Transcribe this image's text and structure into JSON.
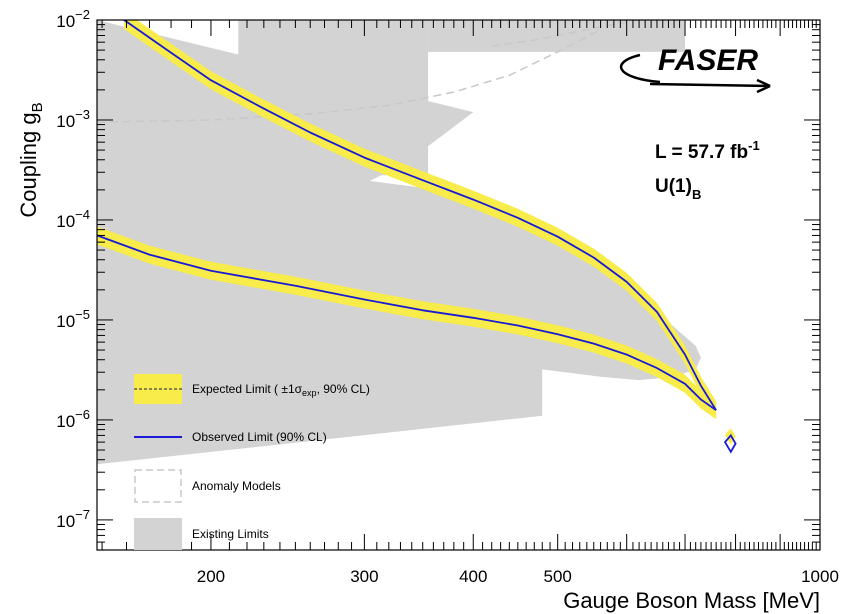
{
  "chart_data": {
    "type": "line",
    "xlabel": "Gauge Boson Mass [MeV]",
    "ylabel": "Coupling g",
    "ylabel_sub": "B",
    "x_scale": "log",
    "y_scale": "log",
    "xlim": [
      148,
      1000
    ],
    "ylim": [
      5e-08,
      0.01
    ],
    "x_ticks": [
      {
        "value": 200,
        "label": "200"
      },
      {
        "value": 300,
        "label": "300"
      },
      {
        "value": 400,
        "label": "400"
      },
      {
        "value": 500,
        "label": "500"
      },
      {
        "value": 1000,
        "label": "1000"
      }
    ],
    "y_ticks": [
      {
        "value": 1e-07,
        "base": "10",
        "exp": "−7"
      },
      {
        "value": 1e-06,
        "base": "10",
        "exp": "−6"
      },
      {
        "value": 1e-05,
        "base": "10",
        "exp": "−5"
      },
      {
        "value": 0.0001,
        "base": "10",
        "exp": "−4"
      },
      {
        "value": 0.001,
        "base": "10",
        "exp": "−3"
      },
      {
        "value": 0.01,
        "base": "10",
        "exp": "−2"
      }
    ],
    "grid": false,
    "annotations": {
      "luminosity": {
        "main": "L = 57.7 fb",
        "sup": "-1"
      },
      "model": {
        "main": "U(1)",
        "sub": "B"
      },
      "logo": "FASER"
    },
    "legend": {
      "placement": "bottom-left",
      "entries": [
        {
          "label": "Expected Limit ( ±1σ",
          "sub": "exp",
          "tail": ", 90% CL)",
          "style": "yellow-band-dashed"
        },
        {
          "label": "Observed Limit (90% CL)",
          "style": "blue-line"
        },
        {
          "label": "Anomaly Models",
          "style": "dashed-box"
        },
        {
          "label": "Existing Limits",
          "style": "grey-fill"
        }
      ]
    },
    "colors": {
      "observed": "#1a1ad6",
      "expected_band": "#f7ec4a",
      "expected_line": "#444444",
      "existing": "#d3d3d3",
      "anomaly": "#c8c8c8"
    },
    "series": [
      {
        "name": "Observed Limit (90% CL)",
        "role": "upper",
        "x": [
          159,
          180,
          200,
          230,
          260,
          300,
          350,
          400,
          450,
          500,
          550,
          600,
          650,
          700,
          730,
          760
        ],
        "y": [
          0.01,
          0.0047,
          0.0025,
          0.0013,
          0.00075,
          0.00042,
          0.00025,
          0.00016,
          0.000105,
          6.8e-05,
          4.2e-05,
          2.4e-05,
          1.2e-05,
          4.5e-06,
          2.2e-06,
          1.25e-06
        ]
      },
      {
        "name": "Observed Limit (90% CL)",
        "role": "lower",
        "x": [
          148,
          170,
          200,
          250,
          300,
          350,
          400,
          450,
          500,
          550,
          600,
          650,
          700,
          730,
          760
        ],
        "y": [
          7e-05,
          4.5e-05,
          3.1e-05,
          2.2e-05,
          1.6e-05,
          1.25e-05,
          1.05e-05,
          8.8e-06,
          7.2e-06,
          5.8e-06,
          4.5e-06,
          3.3e-06,
          2.3e-06,
          1.6e-06,
          1.25e-06
        ]
      },
      {
        "name": "Observed Limit (90% CL)",
        "role": "island",
        "x": [
          778,
          790,
          800,
          790,
          778
        ],
        "y": [
          6e-07,
          4.8e-07,
          5.8e-07,
          7e-07,
          6e-07
        ]
      }
    ],
    "expected_band_width_decades": 0.09,
    "existing_limits_regions": [
      {
        "x": [
          148,
          148,
          170,
          200,
          230,
          260,
          300,
          330,
          360,
          400
        ],
        "y": [
          0.01,
          5.5e-05,
          6.2e-05,
          7.5e-05,
          0.0001,
          0.00015,
          0.00023,
          0.00035,
          0.0006,
          0.0012
        ]
      },
      {
        "x": [
          148,
          220,
          300,
          400,
          480,
          560,
          620,
          680,
          720,
          730,
          720,
          680,
          620,
          560,
          480,
          400,
          300,
          220,
          148
        ],
        "y": [
          0.00017,
          0.00022,
          0.00025,
          0.00018,
          8.5e-05,
          3.5e-05,
          1.7e-05,
          8.5e-06,
          5.5e-06,
          4.2e-06,
          3.2e-06,
          2.7e-06,
          2.5e-06,
          2.7e-06,
          3.2e-06,
          4e-06,
          3.3e-06,
          2e-06,
          1.5e-06
        ]
      },
      {
        "x": [
          148,
          480,
          480,
          148
        ],
        "y": [
          1.6e-05,
          1.6e-05,
          1.1e-06,
          3.6e-07
        ]
      },
      {
        "x": [
          215,
          215,
          355,
          355
        ],
        "y": [
          0.01,
          0.00028,
          0.00028,
          0.01
        ]
      },
      {
        "x": [
          355,
          355,
          560,
          700,
          700
        ],
        "y": [
          0.01,
          0.0048,
          0.0048,
          0.0048,
          0.01
        ]
      }
    ],
    "anomaly_model_curves": [
      {
        "x": [
          148,
          200,
          260,
          320,
          380,
          440,
          500,
          560
        ],
        "y": [
          0.00095,
          0.001,
          0.00115,
          0.0014,
          0.0019,
          0.0028,
          0.0048,
          0.008
        ]
      },
      {
        "x": [
          420,
          470,
          520,
          570,
          620
        ],
        "y": [
          0.0055,
          0.0063,
          0.0075,
          0.0088,
          0.01
        ]
      }
    ]
  }
}
